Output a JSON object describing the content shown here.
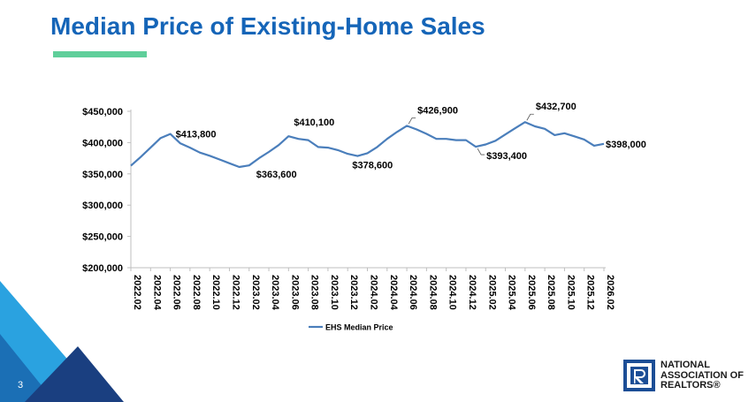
{
  "slide": {
    "title": "Median Price of Existing-Home Sales",
    "page_number": "3",
    "accent_color": "#5fcf9a",
    "title_color": "#1565b8",
    "logo": {
      "line1": "NATIONAL",
      "line2": "ASSOCIATION OF",
      "line3": "REALTORS®",
      "icon": "realtor-r-icon"
    }
  },
  "chart_data": {
    "type": "line",
    "title": "",
    "xlabel": "",
    "ylabel": "",
    "ylim": [
      200000,
      450000
    ],
    "yticks": [
      200000,
      250000,
      300000,
      350000,
      400000,
      450000
    ],
    "ytick_labels": [
      "$200,000",
      "$250,000",
      "$300,000",
      "$350,000",
      "$400,000",
      "$450,000"
    ],
    "grid": false,
    "legend_position": "bottom",
    "line_color": "#4a7ebb",
    "x": [
      "2022.02",
      "2022.03",
      "2022.04",
      "2022.05",
      "2022.06",
      "2022.07",
      "2022.08",
      "2022.09",
      "2022.10",
      "2022.11",
      "2022.12",
      "2023.01",
      "2023.02",
      "2023.03",
      "2023.04",
      "2023.05",
      "2023.06",
      "2023.07",
      "2023.08",
      "2023.09",
      "2023.10",
      "2023.11",
      "2023.12",
      "2024.01",
      "2024.02",
      "2024.03",
      "2024.04",
      "2024.05",
      "2024.06",
      "2024.07",
      "2024.08",
      "2024.09",
      "2024.10",
      "2024.11",
      "2024.12",
      "2025.01",
      "2025.02",
      "2025.03",
      "2025.04",
      "2025.05",
      "2025.06",
      "2025.07",
      "2025.08",
      "2025.09",
      "2025.10",
      "2025.11",
      "2025.12",
      "2026.01",
      "2026.02"
    ],
    "tick_labels": [
      "2022.02",
      "2022.04",
      "2022.06",
      "2022.08",
      "2022.10",
      "2022.12",
      "2023.02",
      "2023.04",
      "2023.06",
      "2023.08",
      "2023.10",
      "2023.12",
      "2024.02",
      "2024.04",
      "2024.06",
      "2024.08",
      "2024.10",
      "2024.12",
      "2025.02",
      "2025.04",
      "2025.06",
      "2025.08",
      "2025.10",
      "2025.12",
      "2026.02"
    ],
    "series": [
      {
        "name": "EHS Median Price",
        "values": [
          363000,
          377000,
          392000,
          407000,
          413800,
          399000,
          392000,
          384000,
          379000,
          373000,
          367000,
          361000,
          363600,
          375000,
          385000,
          396000,
          410100,
          406000,
          404000,
          393000,
          392000,
          388000,
          382000,
          378600,
          383000,
          393000,
          406000,
          417000,
          426900,
          421000,
          414000,
          406000,
          406000,
          404000,
          404000,
          393400,
          397000,
          403000,
          413000,
          423000,
          432700,
          426000,
          422000,
          412000,
          415000,
          410000,
          405000,
          395000,
          398000
        ]
      }
    ],
    "annotations": [
      {
        "label": "$413,800",
        "x": "2022.06",
        "value": 413800
      },
      {
        "label": "$363,600",
        "x": "2023.02",
        "value": 363600
      },
      {
        "label": "$410,100",
        "x": "2023.06",
        "value": 410100
      },
      {
        "label": "$378,600",
        "x": "2024.01",
        "value": 378600
      },
      {
        "label": "$426,900",
        "x": "2024.06",
        "value": 426900
      },
      {
        "label": "$393,400",
        "x": "2025.01",
        "value": 393400
      },
      {
        "label": "$432,700",
        "x": "2025.06",
        "value": 432700
      },
      {
        "label": "$398,000",
        "x": "2026.02",
        "value": 398000
      }
    ]
  }
}
